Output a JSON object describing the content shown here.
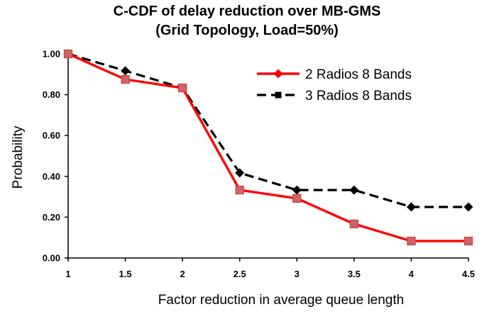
{
  "chart_data": {
    "type": "line",
    "title": "C-CDF of delay reduction over MB-GMS",
    "subtitle": "(Grid Topology, Load=50%)",
    "xlabel": "Factor reduction in average queue length",
    "ylabel": "Probability",
    "x": [
      1,
      1.5,
      2,
      2.5,
      3,
      3.5,
      4,
      4.5
    ],
    "x_tick_labels": [
      "1",
      "1.5",
      "2",
      "2.5",
      "3",
      "3.5",
      "4",
      "4.5"
    ],
    "y_tick_labels": [
      "0.00",
      "0.20",
      "0.40",
      "0.60",
      "0.80",
      "1.00"
    ],
    "y_ticks": [
      0,
      0.2,
      0.4,
      0.6,
      0.8,
      1.0
    ],
    "ylim": [
      0,
      1.0
    ],
    "grid": false,
    "legend_position": "top-right",
    "series": [
      {
        "name": "2 Radios 8 Bands",
        "values": [
          1.0,
          0.875,
          0.833,
          0.333,
          0.292,
          0.167,
          0.083,
          0.083
        ],
        "color": "#ff0000",
        "marker_color": "#cc6666",
        "style": "solid",
        "marker": "square"
      },
      {
        "name": "3 Radios 8 Bands",
        "values": [
          1.0,
          0.917,
          0.833,
          0.417,
          0.333,
          0.333,
          0.25,
          0.25
        ],
        "color": "#000000",
        "marker_color": "#000000",
        "style": "dashed",
        "marker": "diamond"
      }
    ]
  }
}
